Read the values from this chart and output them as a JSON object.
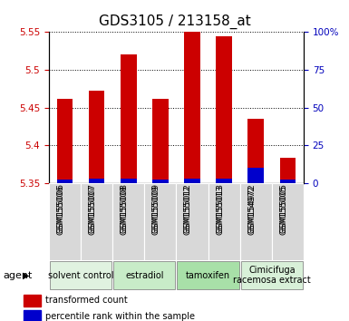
{
  "title": "GDS3105 / 213158_at",
  "samples": [
    "GSM155006",
    "GSM155007",
    "GSM155008",
    "GSM155009",
    "GSM155012",
    "GSM155013",
    "GSM154972",
    "GSM155005"
  ],
  "red_values": [
    5.462,
    5.472,
    5.521,
    5.462,
    5.551,
    5.545,
    5.435,
    5.383
  ],
  "blue_values": [
    2,
    3,
    3,
    2,
    3,
    3,
    10,
    2
  ],
  "ylim_left": [
    5.35,
    5.55
  ],
  "ylim_right": [
    0,
    100
  ],
  "yticks_left": [
    5.35,
    5.4,
    5.45,
    5.5,
    5.55
  ],
  "yticks_right": [
    0,
    25,
    50,
    75,
    100
  ],
  "ytick_labels_left": [
    "5.35",
    "5.4",
    "5.45",
    "5.5",
    "5.55"
  ],
  "ytick_labels_right": [
    "0",
    "25",
    "50",
    "75",
    "100%"
  ],
  "groups": [
    {
      "label": "solvent control",
      "start": 0,
      "end": 2,
      "color": "#e0f2e0"
    },
    {
      "label": "estradiol",
      "start": 2,
      "end": 4,
      "color": "#c8ecc8"
    },
    {
      "label": "tamoxifen",
      "start": 4,
      "end": 6,
      "color": "#a8e0a8"
    },
    {
      "label": "Cimicifuga\nracemosa extract",
      "start": 6,
      "end": 8,
      "color": "#d8f0d8"
    }
  ],
  "agent_label": "agent",
  "legend_red": "transformed count",
  "legend_blue": "percentile rank within the sample",
  "red_color": "#cc0000",
  "blue_color": "#0000cc",
  "left_tick_color": "#cc0000",
  "right_tick_color": "#0000bb",
  "title_fontsize": 11,
  "tick_fontsize": 7.5,
  "sample_fontsize": 6.5,
  "group_fontsize": 7,
  "legend_fontsize": 7
}
